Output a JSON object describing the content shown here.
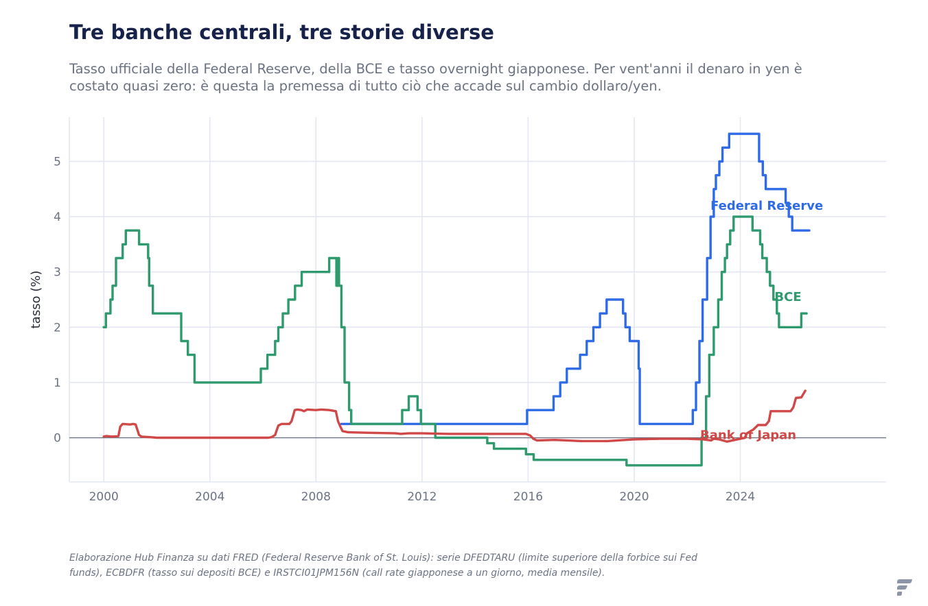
{
  "title": "Tre banche centrali, tre storie diverse",
  "subtitle": "Tasso ufficiale della Federal Reserve, della BCE e tasso overnight giapponese. Per vent'anni il denaro in yen è costato quasi zero: è questa la premessa di tutto ciò che accade sul cambio dollaro/yen.",
  "source": "Elaborazione Hub Finanza su dati FRED (Federal Reserve Bank of St. Louis): serie DFEDTARU (limite superiore della forbice sui Fed funds), ECBDFR (tasso sui depositi BCE) e IRSTCI01JPM156N (call rate giapponese a un giorno, media mensile).",
  "logo_icon": "brand-logo-icon",
  "chart_data": {
    "type": "line",
    "xlabel": "",
    "ylabel": "tasso (%)",
    "xlim": [
      1998.7,
      2029.5
    ],
    "ylim": [
      -0.8,
      5.8
    ],
    "x_ticks": [
      2000,
      2004,
      2008,
      2012,
      2016,
      2020,
      2024
    ],
    "y_ticks": [
      0,
      1,
      2,
      3,
      4,
      5
    ],
    "grid": true,
    "legend": "inline labels at series ends",
    "series": [
      {
        "name": "Federal Reserve",
        "color": "#2f6be6",
        "step": true,
        "points": [
          [
            2008.96,
            0.25
          ],
          [
            2015.96,
            0.5
          ],
          [
            2016.96,
            0.75
          ],
          [
            2017.21,
            1.0
          ],
          [
            2017.46,
            1.25
          ],
          [
            2017.96,
            1.5
          ],
          [
            2018.21,
            1.75
          ],
          [
            2018.46,
            2.0
          ],
          [
            2018.71,
            2.25
          ],
          [
            2018.96,
            2.5
          ],
          [
            2019.58,
            2.25
          ],
          [
            2019.67,
            2.0
          ],
          [
            2019.83,
            1.75
          ],
          [
            2020.17,
            1.25
          ],
          [
            2020.21,
            0.25
          ],
          [
            2022.21,
            0.5
          ],
          [
            2022.33,
            1.0
          ],
          [
            2022.46,
            1.75
          ],
          [
            2022.58,
            2.5
          ],
          [
            2022.75,
            3.25
          ],
          [
            2022.88,
            4.0
          ],
          [
            2023.0,
            4.5
          ],
          [
            2023.08,
            4.75
          ],
          [
            2023.21,
            5.0
          ],
          [
            2023.33,
            5.25
          ],
          [
            2023.58,
            5.5
          ],
          [
            2024.71,
            5.0
          ],
          [
            2024.85,
            4.75
          ],
          [
            2024.96,
            4.5
          ],
          [
            2025.71,
            4.25
          ],
          [
            2025.83,
            4.0
          ],
          [
            2025.96,
            3.75
          ],
          [
            2026.6,
            3.75
          ]
        ]
      },
      {
        "name": "BCE",
        "color": "#2e9a6e",
        "step": true,
        "points": [
          [
            2000.0,
            2.0
          ],
          [
            2000.08,
            2.25
          ],
          [
            2000.25,
            2.5
          ],
          [
            2000.33,
            2.75
          ],
          [
            2000.46,
            3.25
          ],
          [
            2000.71,
            3.5
          ],
          [
            2000.83,
            3.75
          ],
          [
            2001.33,
            3.5
          ],
          [
            2001.67,
            3.25
          ],
          [
            2001.71,
            2.75
          ],
          [
            2001.85,
            2.25
          ],
          [
            2002.92,
            1.75
          ],
          [
            2003.17,
            1.5
          ],
          [
            2003.42,
            1.0
          ],
          [
            2005.92,
            1.25
          ],
          [
            2006.17,
            1.5
          ],
          [
            2006.46,
            1.75
          ],
          [
            2006.58,
            2.0
          ],
          [
            2006.75,
            2.25
          ],
          [
            2006.96,
            2.5
          ],
          [
            2007.21,
            2.75
          ],
          [
            2007.46,
            3.0
          ],
          [
            2008.5,
            3.25
          ],
          [
            2008.77,
            2.75
          ],
          [
            2008.83,
            3.25
          ],
          [
            2008.87,
            2.75
          ],
          [
            2008.96,
            2.0
          ],
          [
            2009.08,
            1.0
          ],
          [
            2009.25,
            0.5
          ],
          [
            2009.33,
            0.25
          ],
          [
            2011.25,
            0.5
          ],
          [
            2011.5,
            0.75
          ],
          [
            2011.83,
            0.5
          ],
          [
            2011.96,
            0.25
          ],
          [
            2012.5,
            0.0
          ],
          [
            2014.46,
            -0.1
          ],
          [
            2014.71,
            -0.2
          ],
          [
            2015.92,
            -0.3
          ],
          [
            2016.21,
            -0.4
          ],
          [
            2019.71,
            -0.5
          ],
          [
            2022.54,
            0.0
          ],
          [
            2022.71,
            0.75
          ],
          [
            2022.83,
            1.5
          ],
          [
            2023.0,
            2.0
          ],
          [
            2023.17,
            2.5
          ],
          [
            2023.3,
            3.0
          ],
          [
            2023.42,
            3.25
          ],
          [
            2023.5,
            3.5
          ],
          [
            2023.62,
            3.75
          ],
          [
            2023.75,
            4.0
          ],
          [
            2024.46,
            3.75
          ],
          [
            2024.75,
            3.5
          ],
          [
            2024.83,
            3.25
          ],
          [
            2025.0,
            3.0
          ],
          [
            2025.12,
            2.75
          ],
          [
            2025.25,
            2.5
          ],
          [
            2025.38,
            2.25
          ],
          [
            2025.46,
            2.0
          ],
          [
            2026.3,
            2.25
          ],
          [
            2026.5,
            2.25
          ]
        ]
      },
      {
        "name": "Bank of Japan",
        "color": "#d04848",
        "step": false,
        "points": [
          [
            2000.0,
            0.02
          ],
          [
            2000.08,
            0.03
          ],
          [
            2000.33,
            0.02
          ],
          [
            2000.55,
            0.03
          ],
          [
            2000.62,
            0.2
          ],
          [
            2000.71,
            0.25
          ],
          [
            2001.0,
            0.24
          ],
          [
            2001.1,
            0.25
          ],
          [
            2001.2,
            0.24
          ],
          [
            2001.33,
            0.05
          ],
          [
            2001.42,
            0.02
          ],
          [
            2001.75,
            0.01
          ],
          [
            2002.0,
            0.0
          ],
          [
            2005.0,
            0.0
          ],
          [
            2006.2,
            0.0
          ],
          [
            2006.33,
            0.01
          ],
          [
            2006.46,
            0.05
          ],
          [
            2006.58,
            0.22
          ],
          [
            2006.71,
            0.25
          ],
          [
            2007.0,
            0.25
          ],
          [
            2007.08,
            0.3
          ],
          [
            2007.2,
            0.5
          ],
          [
            2007.3,
            0.51
          ],
          [
            2007.45,
            0.5
          ],
          [
            2007.55,
            0.48
          ],
          [
            2007.67,
            0.51
          ],
          [
            2008.0,
            0.5
          ],
          [
            2008.2,
            0.51
          ],
          [
            2008.5,
            0.5
          ],
          [
            2008.75,
            0.48
          ],
          [
            2008.83,
            0.3
          ],
          [
            2008.92,
            0.2
          ],
          [
            2009.0,
            0.12
          ],
          [
            2009.2,
            0.1
          ],
          [
            2010.0,
            0.09
          ],
          [
            2011.0,
            0.08
          ],
          [
            2011.2,
            0.07
          ],
          [
            2011.5,
            0.08
          ],
          [
            2012.0,
            0.08
          ],
          [
            2013.0,
            0.07
          ],
          [
            2014.0,
            0.07
          ],
          [
            2015.0,
            0.07
          ],
          [
            2015.92,
            0.07
          ],
          [
            2016.08,
            0.04
          ],
          [
            2016.2,
            -0.02
          ],
          [
            2016.33,
            -0.05
          ],
          [
            2017.0,
            -0.04
          ],
          [
            2018.0,
            -0.06
          ],
          [
            2019.0,
            -0.06
          ],
          [
            2020.0,
            -0.03
          ],
          [
            2021.0,
            -0.02
          ],
          [
            2022.0,
            -0.02
          ],
          [
            2022.6,
            -0.03
          ],
          [
            2022.9,
            -0.05
          ],
          [
            2023.0,
            -0.02
          ],
          [
            2023.2,
            -0.03
          ],
          [
            2023.5,
            -0.07
          ],
          [
            2023.8,
            -0.04
          ],
          [
            2024.0,
            -0.02
          ],
          [
            2024.17,
            0.0
          ],
          [
            2024.25,
            0.08
          ],
          [
            2024.5,
            0.15
          ],
          [
            2024.67,
            0.23
          ],
          [
            2024.96,
            0.23
          ],
          [
            2025.08,
            0.3
          ],
          [
            2025.15,
            0.48
          ],
          [
            2025.5,
            0.48
          ],
          [
            2025.9,
            0.48
          ],
          [
            2026.0,
            0.55
          ],
          [
            2026.1,
            0.72
          ],
          [
            2026.3,
            0.73
          ],
          [
            2026.45,
            0.85
          ]
        ]
      }
    ]
  }
}
